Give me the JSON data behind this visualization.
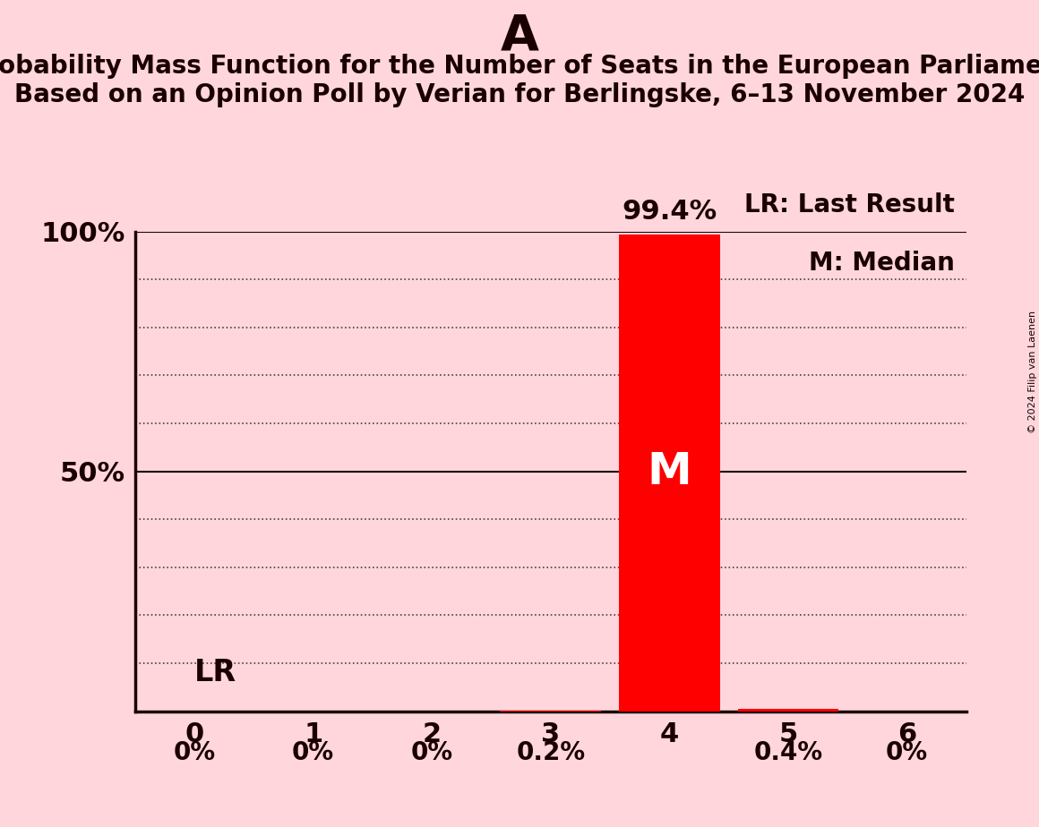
{
  "title_letter": "A",
  "subtitle_line1": "Probability Mass Function for the Number of Seats in the European Parliament",
  "subtitle_line2": "Based on an Opinion Poll by Verian for Berlingske, 6–13 November 2024",
  "copyright_text": "© 2024 Filip van Laenen",
  "x_values": [
    0,
    1,
    2,
    3,
    4,
    5,
    6
  ],
  "y_values": [
    0.0,
    0.0,
    0.0,
    0.2,
    99.4,
    0.4,
    0.0
  ],
  "bar_labels": [
    "0%",
    "0%",
    "0%",
    "0.2%",
    "99.4%",
    "0.4%",
    "0%"
  ],
  "median_x": 4,
  "median_label": "M",
  "lr_label": "LR",
  "legend_lr": "LR: Last Result",
  "legend_m": "M: Median",
  "background_color": "#FFD6DC",
  "bar_color": "#FF0000",
  "axis_color": "#1a0000",
  "ylim": [
    0,
    100
  ],
  "xlim": [
    -0.5,
    6.5
  ],
  "grid_color": "#000000",
  "title_fontsize": 40,
  "subtitle_fontsize": 20,
  "tick_fontsize": 22,
  "bar_label_fontsize": 20,
  "legend_fontsize": 20,
  "bar_width": 0.85
}
